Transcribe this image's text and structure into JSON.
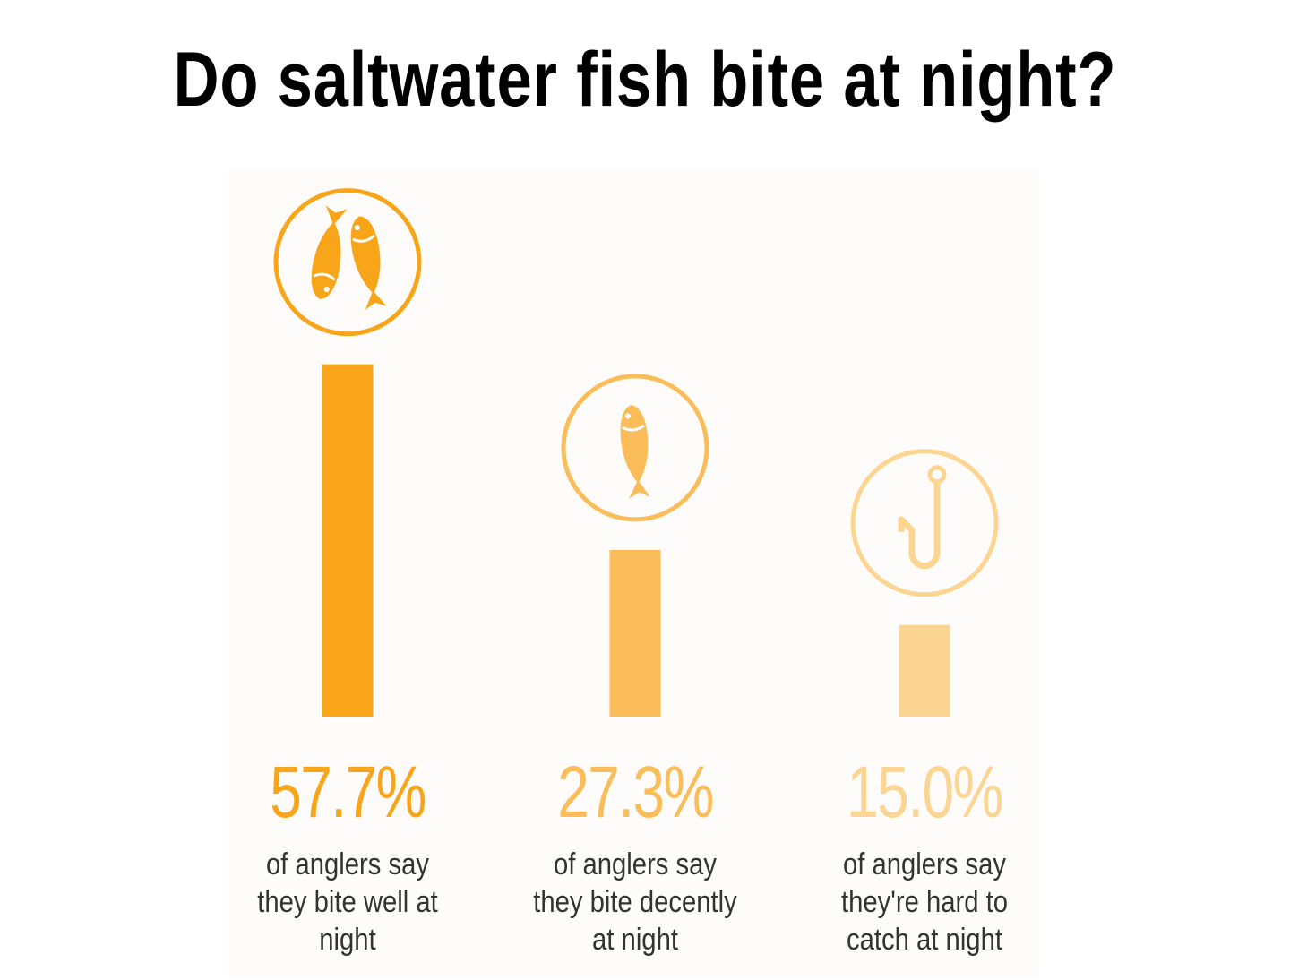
{
  "chart_data": {
    "type": "bar",
    "title": "Do saltwater fish bite at night?",
    "categories": [
      "of anglers say they bite well at night",
      "of anglers say they bite decently at night",
      "of anglers say they're hard to catch at night"
    ],
    "values": [
      57.7,
      27.3,
      15.0
    ],
    "value_labels": [
      "57.7%",
      "27.3%",
      "15.0%"
    ],
    "colors": [
      "#f9a51a",
      "#fbbd5a",
      "#fdd592"
    ],
    "ylim": [
      0,
      60
    ]
  }
}
